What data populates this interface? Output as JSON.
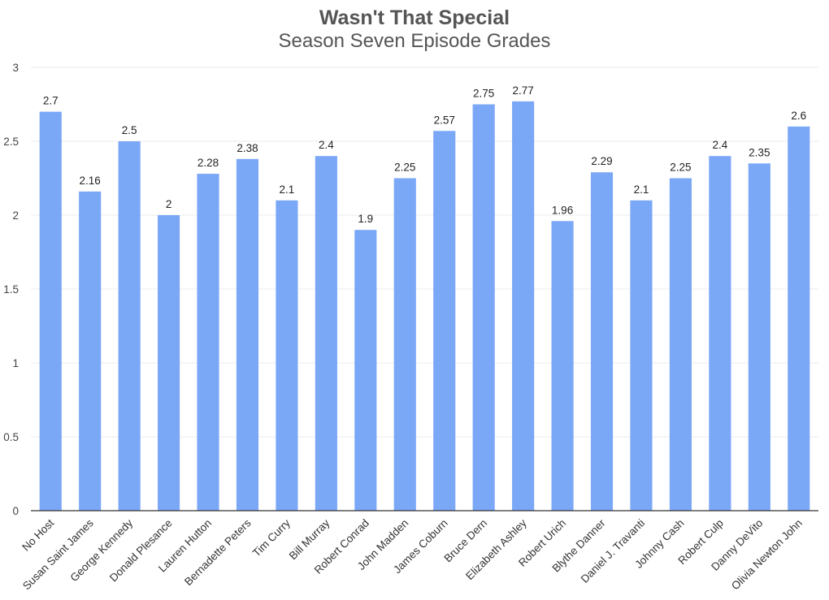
{
  "chart_data": {
    "type": "bar",
    "title": "Wasn't That Special",
    "subtitle": "Season Seven Episode Grades",
    "xlabel": "",
    "ylabel": "",
    "ylim": [
      0,
      3
    ],
    "yticks": [
      "0",
      "0.5",
      "1",
      "1.5",
      "2",
      "2.5",
      "3"
    ],
    "grid": true,
    "bar_color": "#7ba7f7",
    "categories": [
      "No Host",
      "Susan Saint James",
      "George Kennedy",
      "Donald Plesance",
      "Lauren Hutton",
      "Bernadette Peters",
      "Tim Curry",
      "Bill Murray",
      "Robert Conrad",
      "John Madden",
      "James Coburn",
      "Bruce Dern",
      "Elizabeth Ashley",
      "Robert Urich",
      "Blythe Danner",
      "Daniel J. Travanti",
      "Johnny Cash",
      "Robert Culp",
      "Danny DeVito",
      "Olivia Newton John"
    ],
    "values": [
      2.7,
      2.16,
      2.5,
      2,
      2.28,
      2.38,
      2.1,
      2.4,
      1.9,
      2.25,
      2.57,
      2.75,
      2.77,
      1.96,
      2.29,
      2.1,
      2.25,
      2.4,
      2.35,
      2.6
    ],
    "data_labels": [
      "2.7",
      "2.16",
      "2.5",
      "2",
      "2.28",
      "2.38",
      "2.1",
      "2.4",
      "1.9",
      "2.25",
      "2.57",
      "2.75",
      "2.77",
      "1.96",
      "2.29",
      "2.1",
      "2.25",
      "2.4",
      "2.35",
      "2.6"
    ]
  }
}
